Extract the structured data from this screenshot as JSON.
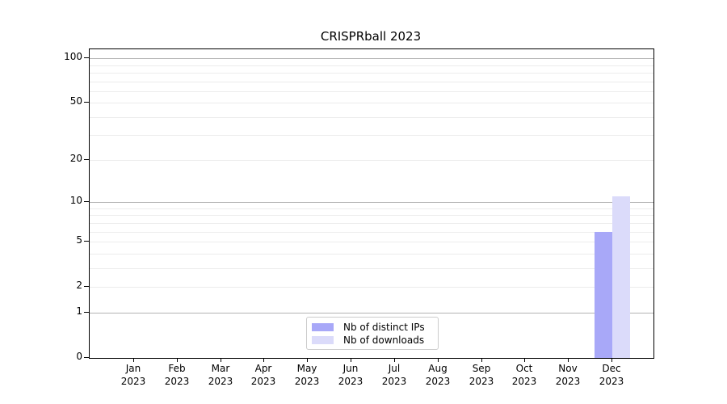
{
  "title": "CRISPRball 2023",
  "colors": {
    "distinct_ips": "#a8a8f8",
    "downloads": "#dbdbfa",
    "grid_major": "#b3b3b3",
    "grid_minor": "#ececec",
    "axis": "#000000",
    "background": "#ffffff"
  },
  "legend": {
    "items": [
      {
        "label": "Nb of distinct IPs",
        "color": "#a8a8f8"
      },
      {
        "label": "Nb of downloads",
        "color": "#dbdbfa"
      }
    ]
  },
  "chart_data": {
    "type": "bar",
    "title": "CRISPRball 2023",
    "categories": [
      "Jan",
      "Feb",
      "Mar",
      "Apr",
      "May",
      "Jun",
      "Jul",
      "Aug",
      "Sep",
      "Oct",
      "Nov",
      "Dec"
    ],
    "year": "2023",
    "series": [
      {
        "name": "Nb of distinct IPs",
        "color": "#a8a8f8",
        "values": [
          0,
          0,
          0,
          0,
          0,
          0,
          0,
          0,
          0,
          0,
          0,
          6
        ]
      },
      {
        "name": "Nb of downloads",
        "color": "#dbdbfa",
        "values": [
          0,
          0,
          0,
          0,
          0,
          0,
          0,
          0,
          0,
          0,
          0,
          11
        ]
      }
    ],
    "xlabel": "",
    "ylabel": "",
    "yscale": "log1p",
    "ylim": [
      0,
      115
    ],
    "yticks": [
      0,
      1,
      2,
      5,
      10,
      20,
      50,
      100
    ],
    "grid": {
      "major": [
        1,
        10,
        100
      ],
      "minor": [
        2,
        3,
        4,
        5,
        6,
        7,
        8,
        9,
        20,
        30,
        40,
        50,
        60,
        70,
        80,
        90
      ]
    },
    "legend_position": "lower center",
    "grid_on": true
  }
}
